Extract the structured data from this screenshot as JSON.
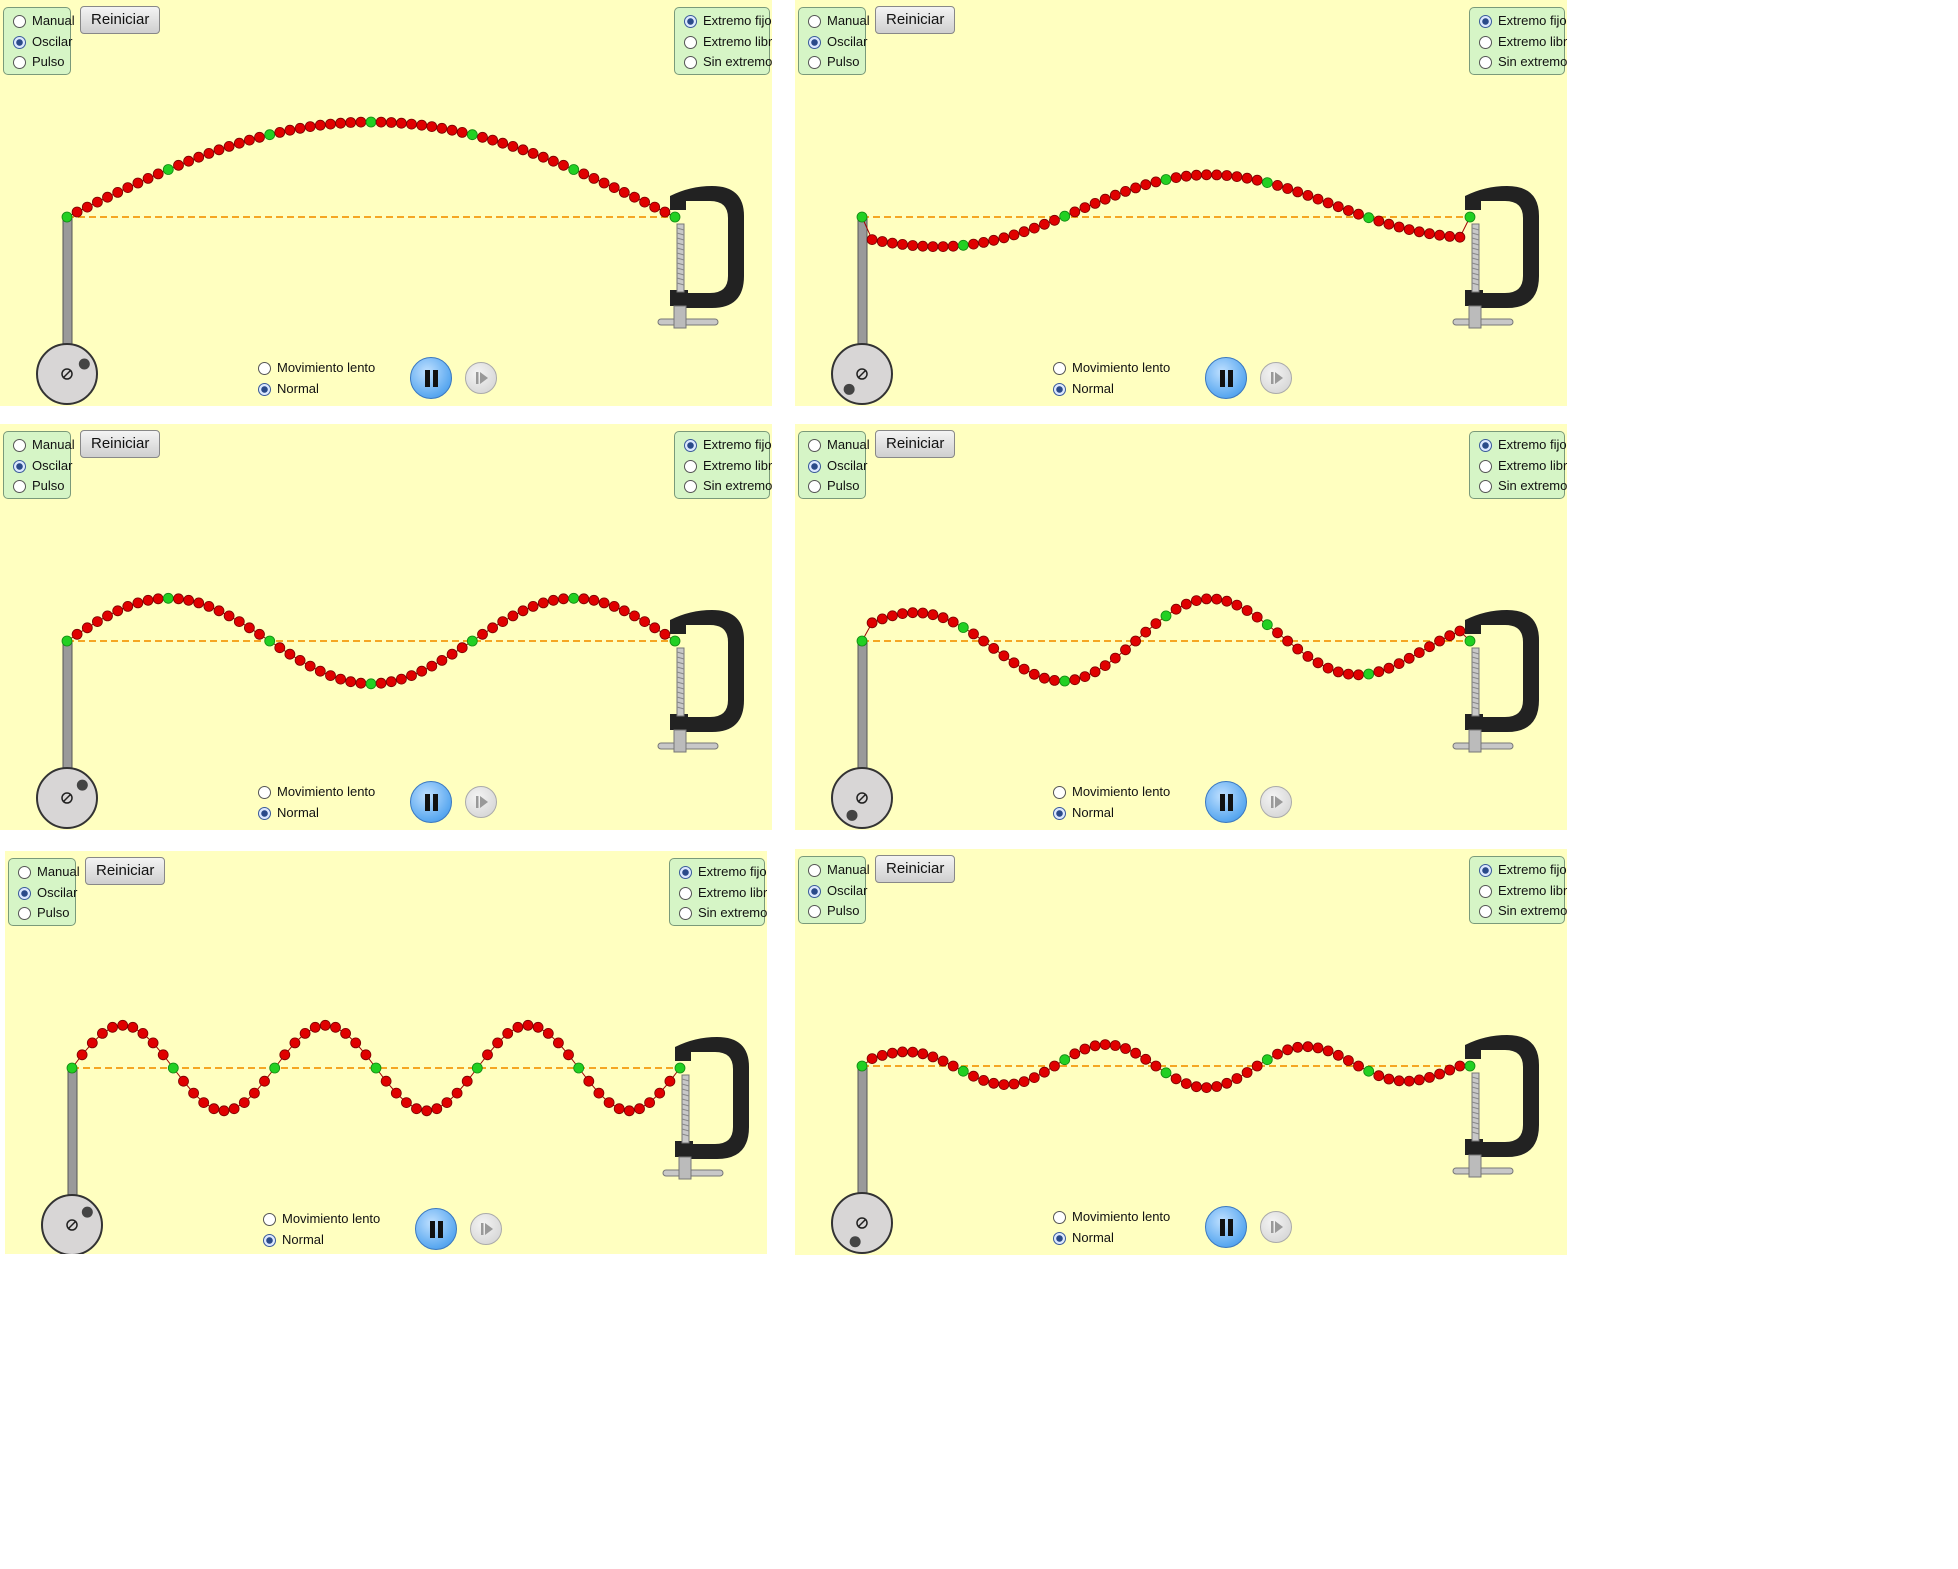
{
  "labels": {
    "manual": "Manual",
    "oscillate": "Oscilar",
    "pulse": "Pulso",
    "reset": "Reiniciar",
    "fixed_end": "Extremo fijo",
    "loose_end": "Extremo libre",
    "no_end": "Sin extremo",
    "slow_motion": "Movimiento lento",
    "normal": "Normal"
  },
  "icons": {
    "pause": "pause-icon",
    "step": "step-forward-icon",
    "oscillator": "oscillator-wheel-icon",
    "clamp": "c-clamp-icon"
  },
  "colors": {
    "background": "#ffffc0",
    "control_box": "#d6f5c6",
    "bead": "#e00000",
    "bead_marker": "#22d022",
    "equilibrium_line": "#f5a623",
    "clamp": "#222222",
    "pause_button": "#5aa8f0"
  },
  "panels": [
    {
      "mode": "Oscilar",
      "end": "Extremo fijo",
      "speed": "Normal",
      "wave": {
        "half_waves": 1,
        "amplitude": 1.0,
        "sign": 1
      },
      "wheel": {
        "knob_angle_deg": 30
      }
    },
    {
      "mode": "Oscilar",
      "end": "Extremo fijo",
      "speed": "Normal",
      "wave": {
        "half_waves": 2,
        "amplitude": 0.45,
        "sign": 1,
        "phase_shift": 0.33
      },
      "wheel": {
        "knob_angle_deg": 230
      }
    },
    {
      "mode": "Oscilar",
      "end": "Extremo fijo",
      "speed": "Normal",
      "wave": {
        "half_waves": 3,
        "amplitude": 0.45,
        "sign": 1
      },
      "wheel": {
        "knob_angle_deg": 40
      }
    },
    {
      "mode": "Oscilar",
      "end": "Extremo fijo",
      "speed": "Normal",
      "wave": {
        "half_waves": 4,
        "amplitude": 0.45,
        "sign": -1,
        "phase_shift": 0.2
      },
      "wheel": {
        "knob_angle_deg": 240
      }
    },
    {
      "mode": "Oscilar",
      "end": "Extremo fijo",
      "speed": "Normal",
      "wave": {
        "half_waves": 6,
        "amplitude": 0.45,
        "sign": 1
      },
      "wheel": {
        "knob_angle_deg": 40
      }
    },
    {
      "mode": "Oscilar",
      "end": "Extremo fijo",
      "speed": "Normal",
      "wave": {
        "half_waves": 6,
        "amplitude": 0.23,
        "sign": -1,
        "phase_shift": 0.15
      },
      "wheel": {
        "knob_angle_deg": 250
      }
    }
  ]
}
